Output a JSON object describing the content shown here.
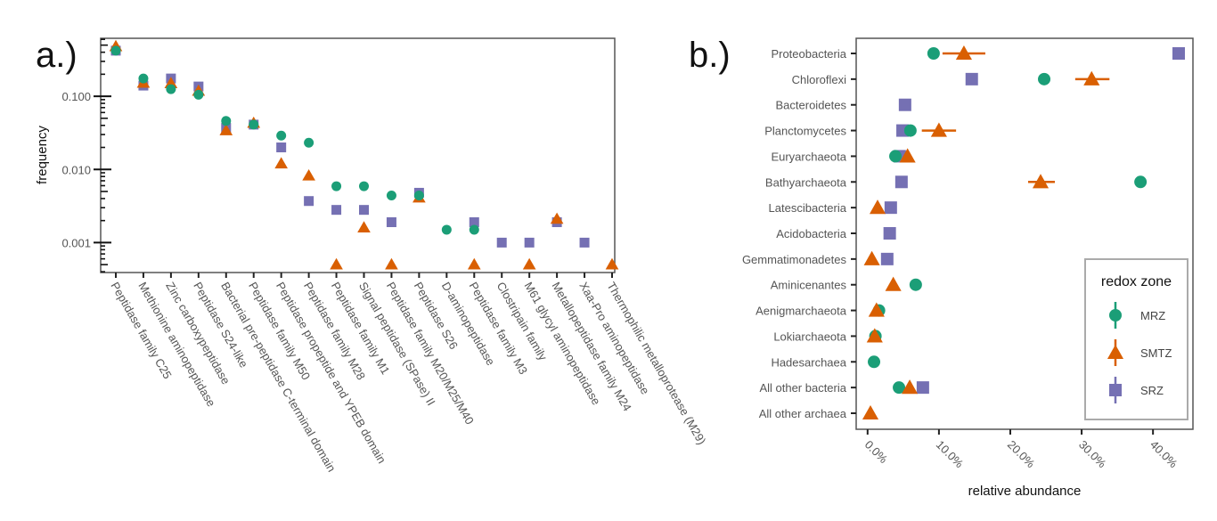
{
  "panels": {
    "a_label": "a.)",
    "b_label": "b.)"
  },
  "chart_data": [
    {
      "type": "scatter",
      "panel": "a",
      "ylabel": "frequency",
      "xlabel": "",
      "yscale": "log10",
      "ylim": [
        0.00039,
        0.62
      ],
      "yticks": [
        0.1,
        0.01,
        0.001
      ],
      "ytick_labels": [
        "0.100",
        "0.010",
        "0.001"
      ],
      "grid": false,
      "categories": [
        "Peptidase family C25",
        "Methionine aminopeptidase",
        "Zinc carboxypeptidase",
        "Peptidase S24-like",
        "Bacterial pre-peptidase C-terminal domain",
        "Peptidase family M50",
        "Peptidase propeptide and YPEB domain",
        "Peptidase family M28",
        "Peptidase family M1",
        "Signal peptidase (SPase) II",
        "Peptidase family M20/M25/M40",
        "Peptidase S26",
        "D-aminopeptidase",
        "Peptidase family M3",
        "Clostripain family",
        "M61 glycyl aminopeptidase",
        "Metallopeptidase family M24",
        "Xaa-Pro aminopeptidase",
        "Thermophilic metalloprotease (M29)"
      ],
      "series": [
        {
          "name": "SRZ",
          "shape": "square",
          "color": "#7570b3",
          "values": [
            0.42,
            0.14,
            0.175,
            0.136,
            0.037,
            0.041,
            0.02,
            0.0037,
            0.0028,
            0.0028,
            0.0019,
            0.0048,
            null,
            0.0019,
            0.001,
            0.001,
            0.0019,
            0.001,
            null
          ]
        },
        {
          "name": "SMTZ",
          "shape": "triangle",
          "color": "#d95f02",
          "values": [
            0.48,
            0.152,
            0.15,
            0.118,
            0.034,
            0.043,
            0.012,
            0.0082,
            0.0005,
            0.0016,
            0.0005,
            0.0041,
            null,
            0.0005,
            null,
            0.0005,
            0.0021,
            null,
            0.0005
          ]
        },
        {
          "name": "MRZ",
          "shape": "circle",
          "color": "#1b9e77",
          "values": [
            0.42,
            0.175,
            0.125,
            0.105,
            0.046,
            0.041,
            0.029,
            0.0232,
            0.0059,
            0.0059,
            0.0044,
            0.0044,
            0.0015,
            0.0015,
            null,
            null,
            null,
            null,
            null
          ]
        }
      ]
    },
    {
      "type": "scatter",
      "panel": "b",
      "xlabel": "relative abundance",
      "ylabel": "",
      "xlim": [
        -1.6,
        45.6
      ],
      "xticks": [
        0,
        10,
        20,
        30,
        40
      ],
      "xtick_labels": [
        "0.0%",
        "10.0%",
        "20.0%",
        "30.0%",
        "40.0%"
      ],
      "grid": false,
      "categories": [
        "Proteobacteria",
        "Chloroflexi",
        "Bacteroidetes",
        "Planctomycetes",
        "Euryarchaeota",
        "Bathyarchaeota",
        "Latescibacteria",
        "Acidobacteria",
        "Gemmatimonadetes",
        "Aminicenantes",
        "Aenigmarchaeota",
        "Lokiarchaeota",
        "Hadesarchaea",
        "All other bacteria",
        "All other archaea"
      ],
      "legend": {
        "title": "redox zone",
        "position": "bottom-right",
        "entries": [
          "MRZ",
          "SMTZ",
          "SRZ"
        ]
      },
      "series": [
        {
          "name": "SRZ",
          "shape": "square",
          "color": "#7570b3",
          "values": [
            43.6,
            14.6,
            5.25,
            4.9,
            4.5,
            4.75,
            3.25,
            3.1,
            2.75,
            null,
            null,
            null,
            null,
            7.75,
            null
          ],
          "err_low": [
            null,
            null,
            null,
            null,
            null,
            null,
            null,
            null,
            null,
            null,
            null,
            null,
            null,
            null,
            null
          ],
          "err_high": [
            null,
            null,
            null,
            null,
            null,
            null,
            null,
            null,
            null,
            null,
            null,
            null,
            null,
            null,
            null
          ]
        },
        {
          "name": "MRZ",
          "shape": "circle",
          "color": "#1b9e77",
          "values": [
            9.25,
            24.75,
            null,
            6.0,
            3.9,
            38.25,
            null,
            null,
            null,
            6.75,
            1.6,
            1.1,
            0.9,
            4.4,
            null
          ],
          "err_low": [
            null,
            null,
            null,
            null,
            null,
            null,
            null,
            null,
            null,
            null,
            null,
            null,
            null,
            null,
            null
          ],
          "err_high": [
            null,
            null,
            null,
            null,
            null,
            null,
            null,
            null,
            null,
            null,
            null,
            null,
            null,
            null,
            null
          ]
        },
        {
          "name": "SMTZ",
          "shape": "triangle",
          "color": "#d95f02",
          "values": [
            13.5,
            31.4,
            null,
            10.0,
            5.6,
            24.25,
            1.4,
            null,
            0.6,
            3.6,
            1.25,
            1.0,
            null,
            5.9,
            0.4
          ],
          "err_low": [
            10.5,
            29.1,
            null,
            7.6,
            null,
            22.5,
            null,
            null,
            null,
            null,
            null,
            null,
            null,
            null,
            null
          ],
          "err_high": [
            16.5,
            33.9,
            null,
            12.4,
            null,
            26.25,
            null,
            null,
            null,
            null,
            null,
            null,
            null,
            null,
            null
          ]
        }
      ]
    }
  ]
}
